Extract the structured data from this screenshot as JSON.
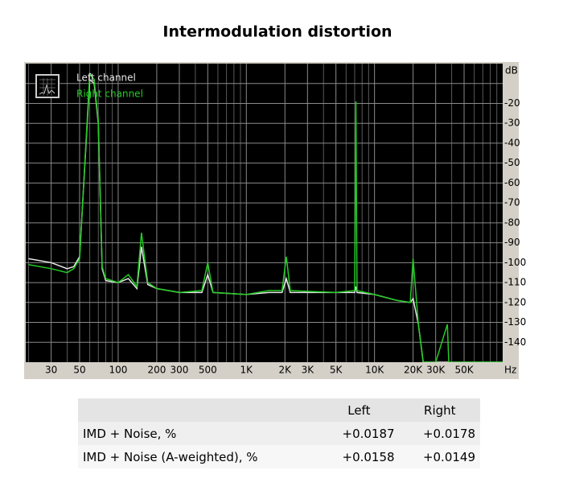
{
  "chart_data": {
    "type": "line",
    "title": "Intermodulation distortion",
    "x": [
      20,
      30,
      40,
      45,
      50,
      55,
      60,
      65,
      70,
      75,
      80,
      100,
      120,
      140,
      152,
      170,
      200,
      300,
      450,
      500,
      550,
      1000,
      1500,
      1900,
      2050,
      2200,
      5000,
      7000,
      7160,
      7300,
      10000,
      15000,
      19000,
      20000,
      22000,
      24000,
      30000,
      37000,
      38000,
      50000,
      100000
    ],
    "series": [
      {
        "name": "Left channel",
        "color": "#e8e8e8",
        "values": [
          -98,
          -100,
          -103,
          -102,
          -97,
          -50,
          -8,
          -10,
          -30,
          -103,
          -109,
          -110,
          -108,
          -113,
          -92,
          -111,
          -113,
          -115,
          -115,
          -106,
          -115,
          -116,
          -115,
          -115,
          -108,
          -115,
          -115,
          -115,
          -112,
          -115,
          -116,
          -119,
          -120,
          -118,
          -131,
          -150,
          -150,
          -150,
          -150,
          -150,
          -150
        ]
      },
      {
        "name": "Right channel",
        "color": "#22cc22",
        "values": [
          -101,
          -103,
          -105,
          -103,
          -98,
          -49,
          -5,
          -8,
          -29,
          -102,
          -108,
          -110,
          -106,
          -112,
          -85,
          -110,
          -113,
          -115,
          -114,
          -100,
          -115,
          -116,
          -114,
          -114,
          -97,
          -114,
          -115,
          -114,
          -19,
          -114,
          -116,
          -119,
          -120,
          -98,
          -131,
          -150,
          -150,
          -131,
          -150,
          -150,
          -150
        ]
      }
    ],
    "log_x": true,
    "xlim": [
      19,
      100000
    ],
    "xticks": [
      30,
      50,
      100,
      {
        "value": 200,
        "label": "200"
      },
      300,
      500,
      {
        "value": 1000,
        "label": "1K"
      },
      {
        "value": 2000,
        "label": "2K"
      },
      {
        "value": 3000,
        "label": "3K"
      },
      {
        "value": 5000,
        "label": "5K"
      },
      {
        "value": 10000,
        "label": "10K"
      },
      {
        "value": 20000,
        "label": "20K"
      },
      {
        "value": 30000,
        "label": "30K"
      },
      {
        "value": 50000,
        "label": "50K"
      }
    ],
    "xminor": [
      20,
      40,
      60,
      70,
      80,
      90,
      400,
      600,
      700,
      800,
      900,
      4000,
      6000,
      7000,
      8000,
      9000,
      40000,
      60000,
      70000,
      80000,
      90000
    ],
    "x_unit": "Hz",
    "ylim": [
      -150,
      0
    ],
    "yticks": [
      -140,
      -130,
      -120,
      -110,
      -100,
      -90,
      -80,
      -70,
      -60,
      -50,
      -40,
      -30,
      -20
    ],
    "yminor": [
      -10
    ],
    "y_unit": "dB",
    "grid": true,
    "legend": "top-left"
  },
  "table": {
    "header": [
      "Left",
      "Right"
    ],
    "rows": [
      [
        "IMD + Noise, %",
        "+0.0187",
        "+0.0178"
      ],
      [
        "IMD + Noise (A-weighted), %",
        "+0.0158",
        "+0.0149"
      ]
    ]
  }
}
